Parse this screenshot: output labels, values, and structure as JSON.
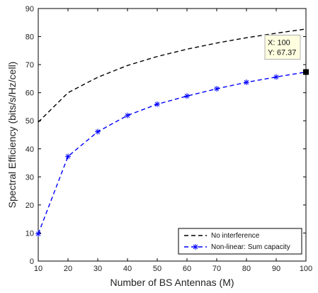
{
  "chart_data": {
    "type": "line",
    "xlabel": "Number of BS Antennas (M)",
    "ylabel": "Spectral Efficiency (bits/s/Hz/cell)",
    "xlim": [
      10,
      100
    ],
    "ylim": [
      0,
      90
    ],
    "xticks": [
      10,
      20,
      30,
      40,
      50,
      60,
      70,
      80,
      90,
      100
    ],
    "yticks": [
      0,
      10,
      20,
      30,
      40,
      50,
      60,
      70,
      80,
      90
    ],
    "grid": false,
    "legend_position": "bottom-right",
    "series": [
      {
        "name": "No interference",
        "style": "dashed",
        "color": "#000000",
        "marker": "none",
        "x": [
          10,
          20,
          30,
          40,
          50,
          60,
          70,
          80,
          90,
          100
        ],
        "y": [
          49.5,
          60,
          65.5,
          69.7,
          72.9,
          75.5,
          77.7,
          79.6,
          81.2,
          82.7
        ]
      },
      {
        "name": "Non-linear: Sum capacity",
        "style": "dashed",
        "color": "#0000ff",
        "marker": "asterisk",
        "x": [
          10,
          20,
          30,
          40,
          50,
          60,
          70,
          80,
          90,
          100
        ],
        "y": [
          9.7,
          37.3,
          46.1,
          51.9,
          55.9,
          58.8,
          61.4,
          63.7,
          65.6,
          67.37
        ]
      }
    ],
    "datatip": {
      "series": 1,
      "x": 100,
      "y": 67.37,
      "line1": "X: 100",
      "line2": "Y: 67.37"
    }
  }
}
